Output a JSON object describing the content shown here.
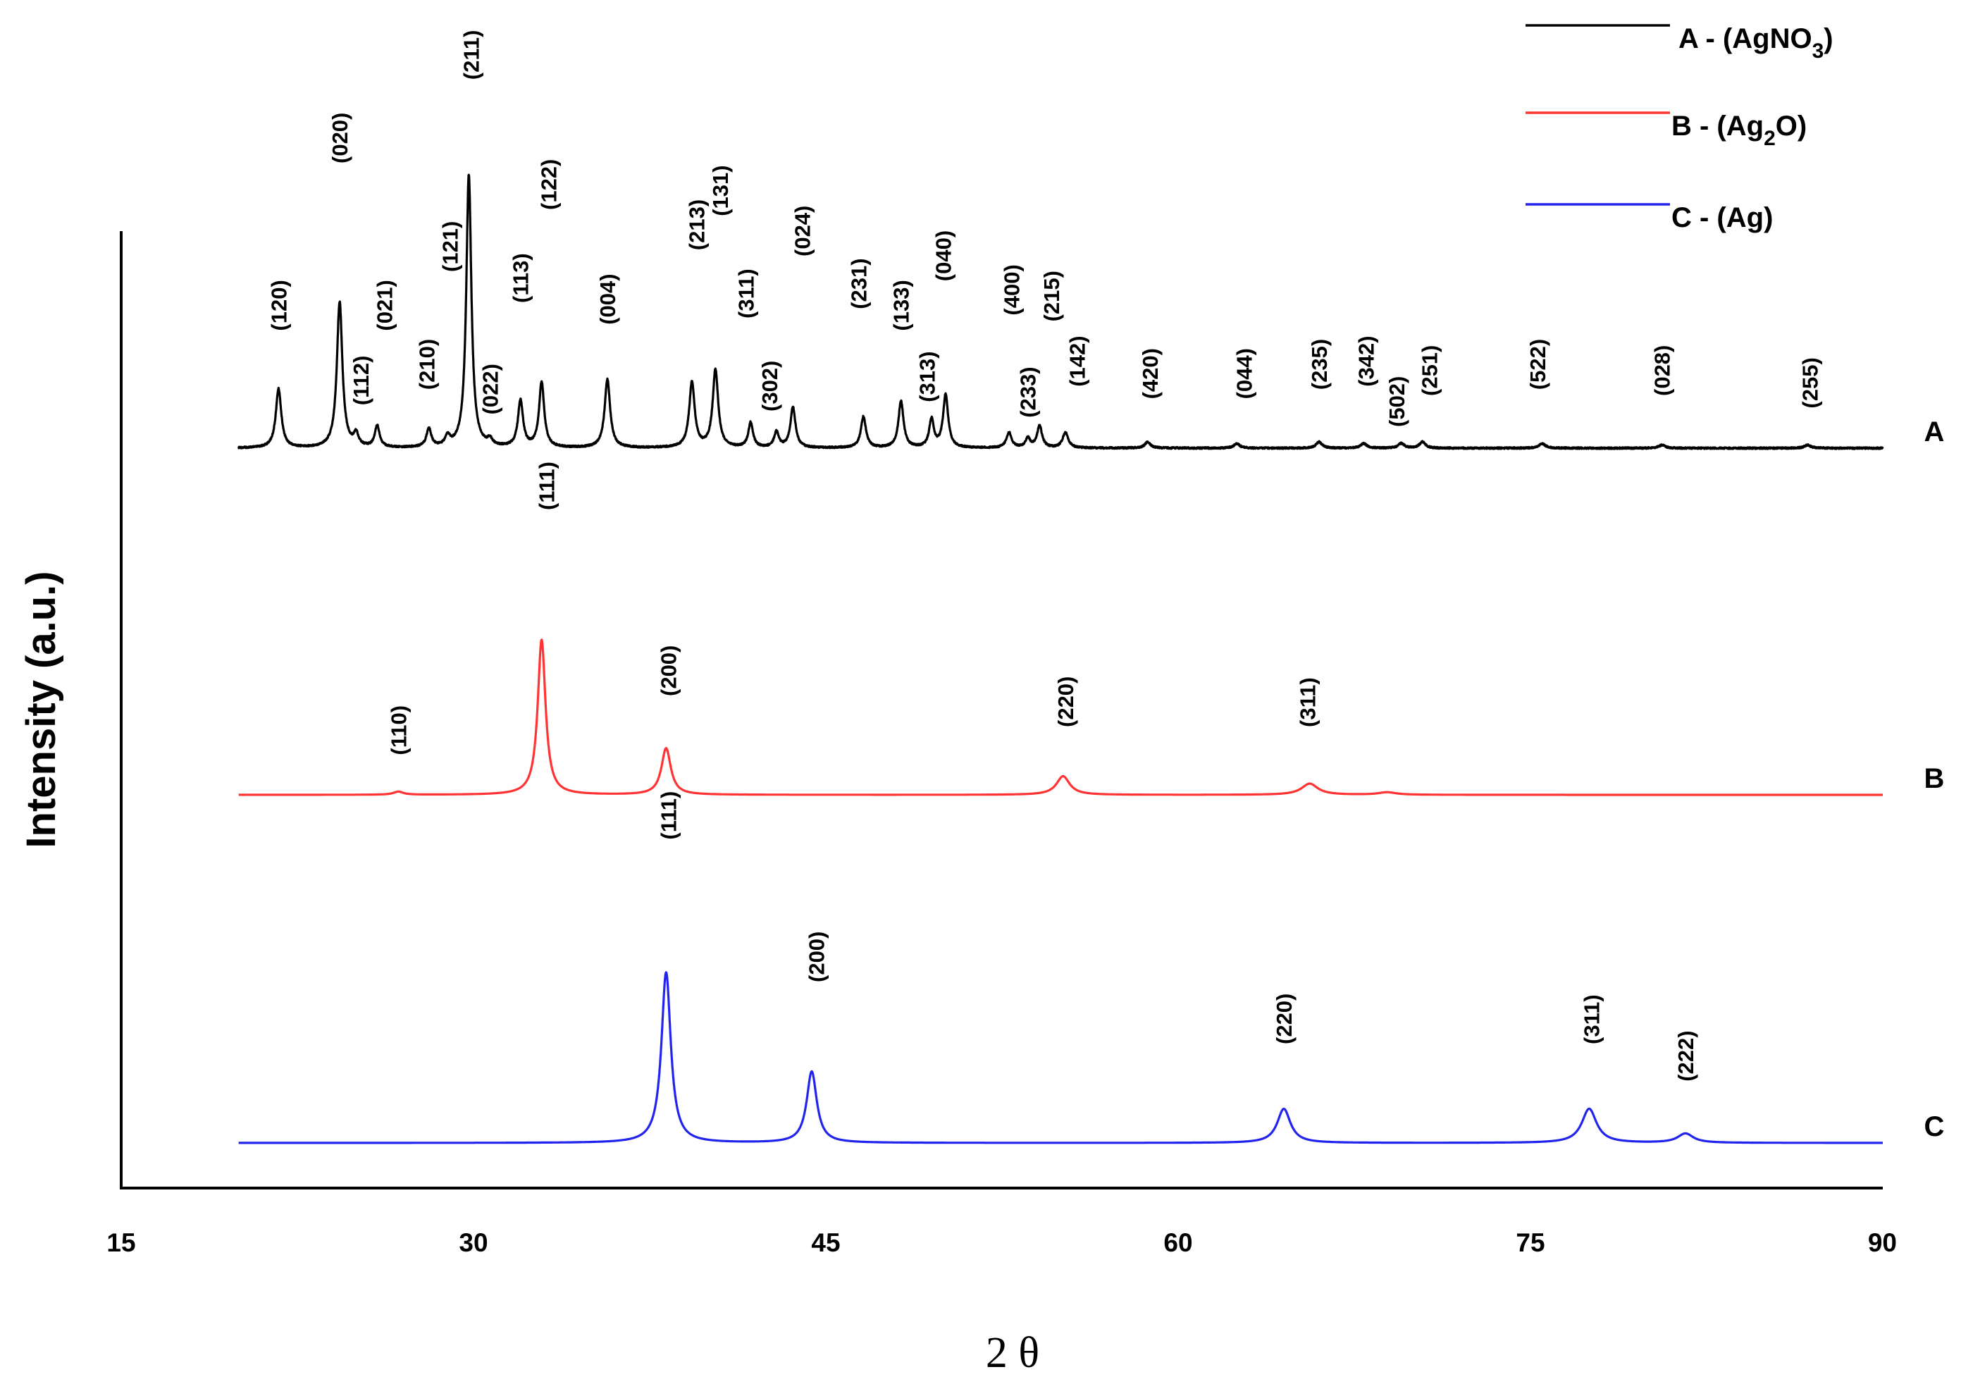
{
  "chart_data": {
    "type": "line",
    "title": "",
    "xlabel": "2 θ",
    "ylabel": "Intensity (a.u.)",
    "xlim": [
      15,
      90
    ],
    "xticks": [
      15,
      30,
      45,
      60,
      75,
      90
    ],
    "data_range": [
      20,
      90
    ],
    "grid": false,
    "legend_position": "top-right",
    "legend": [
      {
        "key": "A",
        "prefix": "A - (AgNO",
        "sub": "3",
        "suffix": ")",
        "color": "#000000"
      },
      {
        "key": "B",
        "prefix": "B - (Ag",
        "sub": "2",
        "suffix": "O)",
        "color": "#ff3333"
      },
      {
        "key": "C",
        "prefix": "C - (Ag)",
        "sub": "",
        "suffix": "",
        "color": "#2323ee"
      }
    ],
    "series": [
      {
        "name": "A",
        "tag": "A",
        "color": "#000000",
        "noise": 1,
        "peaks": [
          {
            "x": 21.7,
            "h": 0.19,
            "w": 0.14,
            "label": "(120)",
            "lx": 21.7,
            "lh": 0.36
          },
          {
            "x": 24.3,
            "h": 0.47,
            "w": 0.14,
            "label": "(020)",
            "lx": 24.3,
            "lh": 0.9
          },
          {
            "x": 25.0,
            "h": 0.04,
            "w": 0.12,
            "label": "(112)",
            "lx": 25.2,
            "lh": 0.12
          },
          {
            "x": 25.9,
            "h": 0.07,
            "w": 0.12,
            "label": "(021)",
            "lx": 26.2,
            "lh": 0.36
          },
          {
            "x": 28.1,
            "h": 0.06,
            "w": 0.12,
            "label": "(210)",
            "lx": 28.0,
            "lh": 0.17
          },
          {
            "x": 28.9,
            "h": 0.03,
            "w": 0.12,
            "label": "(121)",
            "lx": 29.0,
            "lh": 0.55
          },
          {
            "x": 29.8,
            "h": 0.88,
            "w": 0.13,
            "label": "(211)",
            "lx": 29.9,
            "lh": 1.17
          },
          {
            "x": 30.7,
            "h": 0.02,
            "w": 0.12,
            "label": "(022)",
            "lx": 30.7,
            "lh": 0.09
          },
          {
            "x": 32.0,
            "h": 0.15,
            "w": 0.13,
            "label": "(113)",
            "lx": 32.0,
            "lh": 0.45
          },
          {
            "x": 32.9,
            "h": 0.21,
            "w": 0.13,
            "label": "(122)",
            "lx": 33.2,
            "lh": 0.75
          },
          {
            "x": 35.7,
            "h": 0.22,
            "w": 0.14,
            "label": "(004)",
            "lx": 35.7,
            "lh": 0.38
          },
          {
            "x": 39.3,
            "h": 0.21,
            "w": 0.14,
            "label": "(213)",
            "lx": 39.5,
            "lh": 0.62
          },
          {
            "x": 40.3,
            "h": 0.25,
            "w": 0.14,
            "label": "(131)",
            "lx": 40.5,
            "lh": 0.73
          },
          {
            "x": 41.8,
            "h": 0.08,
            "w": 0.12,
            "label": "(311)",
            "lx": 41.6,
            "lh": 0.4
          },
          {
            "x": 42.9,
            "h": 0.05,
            "w": 0.12,
            "label": "(302)",
            "lx": 42.6,
            "lh": 0.1
          },
          {
            "x": 43.6,
            "h": 0.13,
            "w": 0.13,
            "label": "(024)",
            "lx": 44.0,
            "lh": 0.6
          },
          {
            "x": 46.6,
            "h": 0.1,
            "w": 0.13,
            "label": "(231)",
            "lx": 46.4,
            "lh": 0.43
          },
          {
            "x": 48.2,
            "h": 0.15,
            "w": 0.13,
            "label": "(133)",
            "lx": 48.2,
            "lh": 0.36
          },
          {
            "x": 49.5,
            "h": 0.09,
            "w": 0.12,
            "label": "(313)",
            "lx": 49.3,
            "lh": 0.13
          },
          {
            "x": 50.1,
            "h": 0.17,
            "w": 0.13,
            "label": "(040)",
            "lx": 50.0,
            "lh": 0.52
          },
          {
            "x": 52.8,
            "h": 0.05,
            "w": 0.13,
            "label": "(400)",
            "lx": 52.9,
            "lh": 0.41
          },
          {
            "x": 53.6,
            "h": 0.03,
            "w": 0.12,
            "label": "(233)",
            "lx": 53.6,
            "lh": 0.08
          },
          {
            "x": 54.1,
            "h": 0.07,
            "w": 0.13,
            "label": "(215)",
            "lx": 54.6,
            "lh": 0.39
          },
          {
            "x": 55.2,
            "h": 0.05,
            "w": 0.14,
            "label": "(142)",
            "lx": 55.7,
            "lh": 0.18
          },
          {
            "x": 58.7,
            "h": 0.02,
            "w": 0.14,
            "label": "(420)",
            "lx": 58.8,
            "lh": 0.14
          },
          {
            "x": 62.5,
            "h": 0.015,
            "w": 0.14,
            "label": "(044)",
            "lx": 62.8,
            "lh": 0.14
          },
          {
            "x": 66.0,
            "h": 0.02,
            "w": 0.15,
            "label": "(235)",
            "lx": 66.0,
            "lh": 0.17
          },
          {
            "x": 67.9,
            "h": 0.015,
            "w": 0.15,
            "label": "(342)",
            "lx": 68.0,
            "lh": 0.18
          },
          {
            "x": 69.5,
            "h": 0.015,
            "w": 0.15,
            "label": "(502)",
            "lx": 69.3,
            "lh": 0.05
          },
          {
            "x": 70.4,
            "h": 0.02,
            "w": 0.15,
            "label": "(251)",
            "lx": 70.7,
            "lh": 0.15
          },
          {
            "x": 75.5,
            "h": 0.015,
            "w": 0.16,
            "label": "(522)",
            "lx": 75.3,
            "lh": 0.17
          },
          {
            "x": 80.6,
            "h": 0.01,
            "w": 0.16,
            "label": "(028)",
            "lx": 80.6,
            "lh": 0.15
          },
          {
            "x": 86.8,
            "h": 0.01,
            "w": 0.16,
            "label": "(255)",
            "lx": 86.9,
            "lh": 0.11
          }
        ]
      },
      {
        "name": "B",
        "tag": "B",
        "color": "#ff3333",
        "noise": 0,
        "peaks": [
          {
            "x": 26.8,
            "h": 0.01,
            "w": 0.25,
            "label": "(110)",
            "lx": 26.8,
            "lh": 0.11
          },
          {
            "x": 32.9,
            "h": 0.5,
            "w": 0.2,
            "label": "(111)",
            "lx": 33.1,
            "lh": 0.9
          },
          {
            "x": 38.2,
            "h": 0.15,
            "w": 0.24,
            "label": "(200)",
            "lx": 38.3,
            "lh": 0.3
          },
          {
            "x": 55.1,
            "h": 0.06,
            "w": 0.34,
            "label": "(220)",
            "lx": 55.2,
            "lh": 0.2
          },
          {
            "x": 65.6,
            "h": 0.036,
            "w": 0.42,
            "label": "(311)",
            "lx": 65.5,
            "lh": 0.2
          },
          {
            "x": 68.9,
            "h": 0.008,
            "w": 0.45,
            "label": "",
            "lx": 0,
            "lh": 0
          }
        ]
      },
      {
        "name": "C",
        "tag": "C",
        "color": "#2323ee",
        "noise": 0,
        "peaks": [
          {
            "x": 38.2,
            "h": 0.55,
            "w": 0.24,
            "label": "(111)",
            "lx": 38.3,
            "lh": 0.96
          },
          {
            "x": 44.4,
            "h": 0.23,
            "w": 0.26,
            "label": "(200)",
            "lx": 44.6,
            "lh": 0.5
          },
          {
            "x": 64.5,
            "h": 0.11,
            "w": 0.34,
            "label": "(220)",
            "lx": 64.5,
            "lh": 0.3
          },
          {
            "x": 77.5,
            "h": 0.11,
            "w": 0.38,
            "label": "(311)",
            "lx": 77.6,
            "lh": 0.3
          },
          {
            "x": 81.6,
            "h": 0.03,
            "w": 0.4,
            "label": "(222)",
            "lx": 81.6,
            "lh": 0.18
          }
        ]
      }
    ]
  }
}
